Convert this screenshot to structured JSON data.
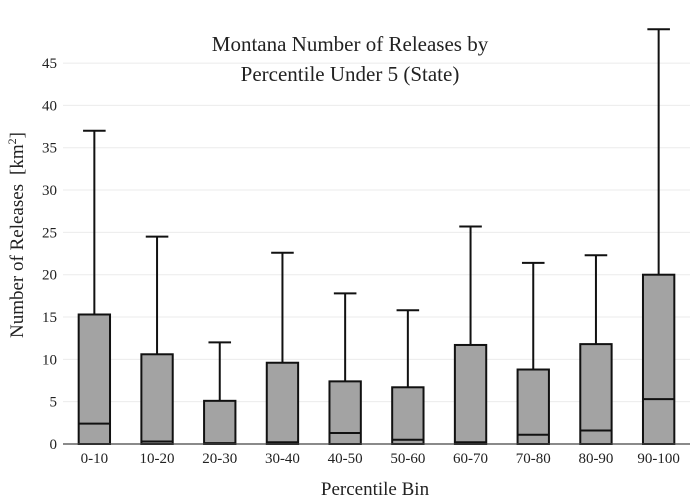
{
  "chart_data": {
    "type": "box",
    "title": [
      "Montana Number of Releases by",
      "Percentile Under 5 (State)"
    ],
    "xlabel": "Percentile Bin",
    "ylabel": "Number of Releases",
    "ylabel_unit_base": "[km",
    "ylabel_unit_sup": "2",
    "ylabel_unit_close": "]",
    "ylim": [
      0,
      49.5
    ],
    "yticks": [
      0,
      5,
      10,
      15,
      20,
      25,
      30,
      35,
      40,
      45
    ],
    "grid": true,
    "colors": {
      "box_fill": "#a3a3a3",
      "box_stroke": "#111111",
      "grid": "#ebebeb"
    },
    "boxes": [
      {
        "category": "0-10",
        "low": 0,
        "q1": 0,
        "median": 2.4,
        "q3": 15.3,
        "high": 37.0
      },
      {
        "category": "10-20",
        "low": 0,
        "q1": 0,
        "median": 0.3,
        "q3": 10.6,
        "high": 24.5
      },
      {
        "category": "20-30",
        "low": 0,
        "q1": 0,
        "median": 0.1,
        "q3": 5.1,
        "high": 12.0
      },
      {
        "category": "30-40",
        "low": 0,
        "q1": 0,
        "median": 0.2,
        "q3": 9.6,
        "high": 22.6
      },
      {
        "category": "40-50",
        "low": 0,
        "q1": 0,
        "median": 1.3,
        "q3": 7.4,
        "high": 17.8
      },
      {
        "category": "50-60",
        "low": 0,
        "q1": 0,
        "median": 0.5,
        "q3": 6.7,
        "high": 15.8
      },
      {
        "category": "60-70",
        "low": 0,
        "q1": 0,
        "median": 0.2,
        "q3": 11.7,
        "high": 25.7
      },
      {
        "category": "70-80",
        "low": 0,
        "q1": 0,
        "median": 1.1,
        "q3": 8.8,
        "high": 21.4
      },
      {
        "category": "80-90",
        "low": 0,
        "q1": 0,
        "median": 1.6,
        "q3": 11.8,
        "high": 22.3
      },
      {
        "category": "90-100",
        "low": 0,
        "q1": 0,
        "median": 5.3,
        "q3": 20.0,
        "high": 49.0
      }
    ]
  }
}
